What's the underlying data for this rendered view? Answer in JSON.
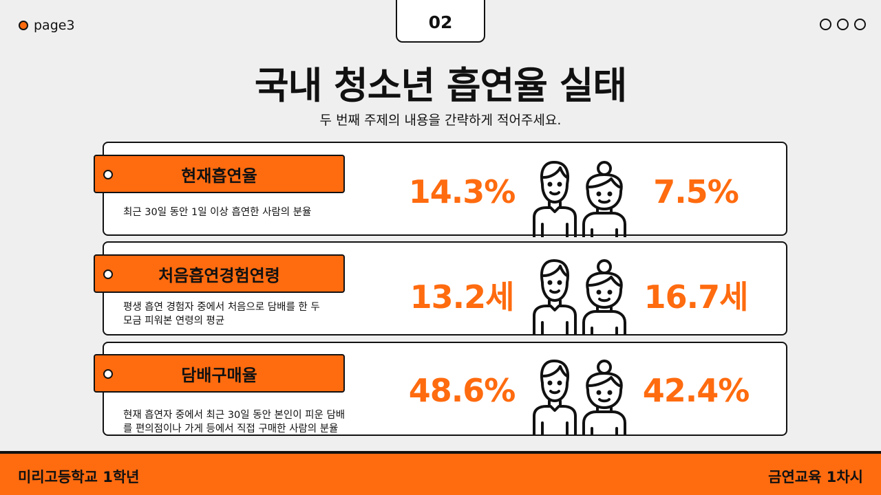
{
  "header": {
    "page_label": "page3",
    "number": "02",
    "title": "국내 청소년 흡연율 실태",
    "subtitle": "두 번째 주제의 내용을 간략하게 적어주세요."
  },
  "rows": [
    {
      "label": "현재흡연율",
      "description_lines": [
        "최근 30일 동안 1일 이상 흡연한 사람의 분율"
      ],
      "male_value": "14.3%",
      "female_value": "7.5%"
    },
    {
      "label": "처음흡연경험연령",
      "description_lines": [
        "평생 흡연 경험자 중에서 처음으로 담배를 한 두",
        "모금 피워본 연령의 평균"
      ],
      "male_value": "13.2세",
      "female_value": "16.7세"
    },
    {
      "label": "담배구매율",
      "description_lines": [
        "현재 흡연자 중에서 최근 30일 동안 본인이 피운 담배",
        "를 편의점이나 가게 등에서 직접 구매한 사람의 분율"
      ],
      "male_value": "48.6%",
      "female_value": "42.4%"
    }
  ],
  "footer": {
    "left": "미리고등학교 1학년",
    "right": "금연교육 1차시"
  },
  "colors": {
    "accent": "#ff6b0f",
    "background": "#efefef",
    "ink": "#111111"
  },
  "icons": [
    "male-person-icon",
    "female-person-icon"
  ]
}
